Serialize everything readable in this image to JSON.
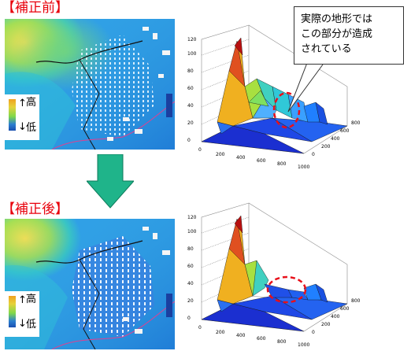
{
  "before": {
    "label": "【補正前】",
    "legend": {
      "high": "高",
      "low": "低"
    },
    "plot": {
      "z_ticks": [
        "120",
        "100",
        "80",
        "60",
        "40",
        "20",
        "0"
      ],
      "x_ticks": [
        "0",
        "200",
        "400",
        "600",
        "800",
        "1000"
      ],
      "y_ticks": [
        "0",
        "200",
        "400",
        "600",
        "800"
      ]
    }
  },
  "after": {
    "label": "【補正後】",
    "legend": {
      "high": "高",
      "low": "低"
    },
    "plot": {
      "z_ticks": [
        "120",
        "100",
        "80",
        "60",
        "40",
        "20",
        "0"
      ],
      "x_ticks": [
        "0",
        "200",
        "400",
        "600",
        "800",
        "1000"
      ],
      "y_ticks": [
        "0",
        "200",
        "400",
        "600",
        "800"
      ]
    }
  },
  "callout": {
    "lines": [
      "実際の地形では",
      "この部分が造成",
      "されている"
    ]
  },
  "colors": {
    "label_red": "#e8000b",
    "arrow_green": "#1fb48a",
    "dashed_circle": "#e8101a"
  }
}
